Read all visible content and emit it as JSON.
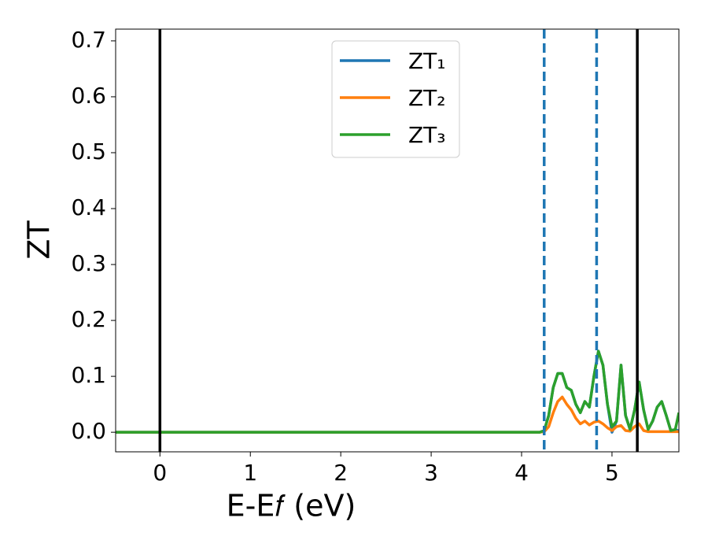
{
  "chart_data": {
    "type": "line",
    "x_label": "E-E𝑓 (eV)",
    "y_label": "ZT",
    "x": [
      -0.49,
      0,
      1,
      2,
      3,
      4,
      4.2,
      4.25,
      4.3,
      4.35,
      4.4,
      4.45,
      4.5,
      4.55,
      4.6,
      4.65,
      4.7,
      4.75,
      4.8,
      4.85,
      4.9,
      4.95,
      5.0,
      5.05,
      5.1,
      5.15,
      5.2,
      5.25,
      5.3,
      5.35,
      5.4,
      5.45,
      5.5,
      5.55,
      5.6,
      5.65,
      5.7,
      5.74
    ],
    "series": [
      {
        "name": "ZT₁",
        "color": "#1f77b4",
        "values": [
          0,
          0,
          0,
          0,
          0,
          0,
          0,
          0.003,
          0.03,
          0.08,
          0.105,
          0.105,
          0.08,
          0.075,
          0.05,
          0.035,
          0.055,
          0.045,
          0.1,
          0.145,
          0.12,
          0.05,
          0.0,
          0.02,
          0.12,
          0.03,
          0.005,
          0.04,
          0.09,
          0.04,
          0.005,
          0.02,
          0.045,
          0.055,
          0.03,
          0.003,
          0.005,
          0.002
        ]
      },
      {
        "name": "ZT₂",
        "color": "#ff7f0e",
        "values": [
          0,
          0,
          0,
          0,
          0,
          0,
          0,
          0.001,
          0.01,
          0.035,
          0.055,
          0.063,
          0.05,
          0.04,
          0.025,
          0.015,
          0.02,
          0.013,
          0.018,
          0.02,
          0.015,
          0.008,
          0.003,
          0.01,
          0.012,
          0.003,
          0.002,
          0.01,
          0.015,
          0.003,
          0.001,
          0.001,
          0.001,
          0.001,
          0.001,
          0.001,
          0.001,
          0.001
        ]
      },
      {
        "name": "ZT₃",
        "color": "#2ca02c",
        "values": [
          0,
          0,
          0,
          0,
          0,
          0,
          0,
          0.003,
          0.03,
          0.08,
          0.105,
          0.105,
          0.08,
          0.075,
          0.05,
          0.035,
          0.055,
          0.045,
          0.1,
          0.145,
          0.12,
          0.05,
          0.01,
          0.02,
          0.12,
          0.03,
          0.005,
          0.04,
          0.09,
          0.04,
          0.005,
          0.02,
          0.045,
          0.055,
          0.03,
          0.003,
          0.005,
          0.035
        ]
      }
    ],
    "vlines": [
      {
        "x": 0,
        "color": "#000000",
        "dashed": false
      },
      {
        "x": 5.28,
        "color": "#000000",
        "dashed": false
      },
      {
        "x": 4.25,
        "color": "#1f77b4",
        "dashed": true
      },
      {
        "x": 4.83,
        "color": "#1f77b4",
        "dashed": true
      }
    ],
    "xlim": [
      -0.49,
      5.74
    ],
    "ylim": [
      -0.035,
      0.721
    ],
    "xticks": [
      0,
      1,
      2,
      3,
      4,
      5
    ],
    "yticks": [
      {
        "value": 0,
        "label": "0.0"
      },
      0.1,
      0.2,
      0.3,
      0.4,
      0.5,
      0.6,
      0.7
    ],
    "grid": false,
    "legend": "upper center"
  }
}
